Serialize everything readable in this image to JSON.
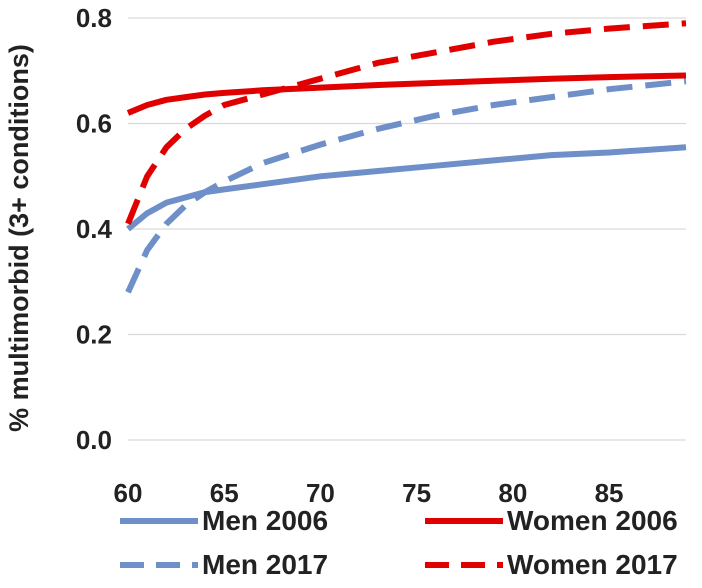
{
  "chart_data": {
    "type": "line",
    "title": "",
    "xlabel": "",
    "ylabel": "% multimorbid (3+ conditions)",
    "xlim": [
      60,
      89
    ],
    "ylim": [
      0.0,
      0.8
    ],
    "x_ticks": [
      "60",
      "65",
      "70",
      "75",
      "80",
      "85"
    ],
    "y_ticks": [
      "0.0",
      "0.2",
      "0.4",
      "0.6",
      "0.8"
    ],
    "grid": "horizontal",
    "legend": "bottom",
    "x": [
      60,
      61,
      62,
      63,
      64,
      65,
      67,
      70,
      73,
      76,
      79,
      82,
      85,
      89
    ],
    "series": [
      {
        "name": "Men 2006",
        "color": "#6f8fc8",
        "dash": "solid",
        "values": [
          0.4,
          0.43,
          0.45,
          0.46,
          0.47,
          0.475,
          0.485,
          0.5,
          0.51,
          0.52,
          0.53,
          0.54,
          0.545,
          0.555
        ]
      },
      {
        "name": "Women 2006",
        "color": "#e00000",
        "dash": "solid",
        "values": [
          0.62,
          0.635,
          0.645,
          0.65,
          0.655,
          0.658,
          0.663,
          0.668,
          0.673,
          0.677,
          0.681,
          0.685,
          0.688,
          0.691
        ]
      },
      {
        "name": "Men 2017",
        "color": "#6f8fc8",
        "dash": "dashed",
        "values": [
          0.28,
          0.36,
          0.41,
          0.445,
          0.47,
          0.49,
          0.525,
          0.56,
          0.59,
          0.615,
          0.635,
          0.65,
          0.665,
          0.68
        ]
      },
      {
        "name": "Women 2017",
        "color": "#e00000",
        "dash": "dashed",
        "values": [
          0.41,
          0.5,
          0.555,
          0.59,
          0.615,
          0.635,
          0.655,
          0.685,
          0.715,
          0.735,
          0.755,
          0.77,
          0.78,
          0.79
        ]
      }
    ]
  }
}
